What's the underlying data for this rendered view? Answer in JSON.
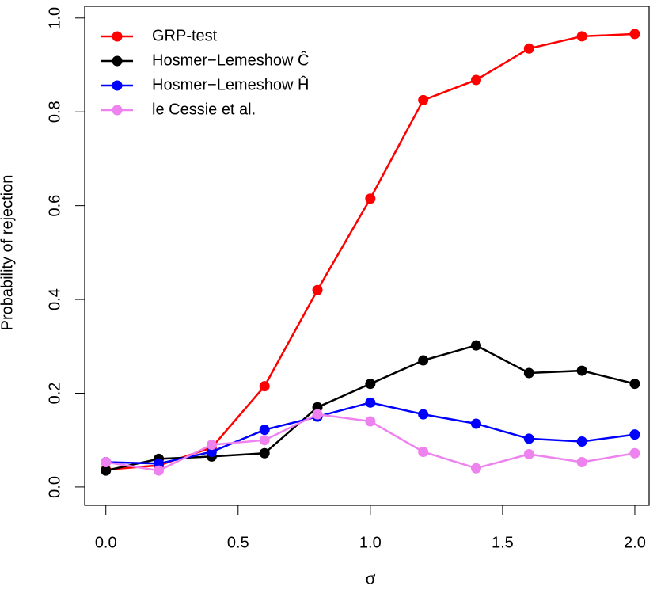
{
  "chart_data": {
    "type": "line",
    "x_label": "σ",
    "y_label": "Probability of rejection",
    "x": [
      0,
      0.2,
      0.4,
      0.6,
      0.8,
      1.0,
      1.2,
      1.4,
      1.6,
      1.8,
      2.0
    ],
    "series": [
      {
        "name": "GRP-test",
        "color": "#ff0000",
        "values": [
          0.037,
          0.046,
          0.084,
          0.215,
          0.42,
          0.615,
          0.825,
          0.868,
          0.935,
          0.961,
          0.966
        ]
      },
      {
        "name": "Hosmer−Lemeshow Ĉ",
        "color": "#000000",
        "values": [
          0.035,
          0.06,
          0.065,
          0.072,
          0.17,
          0.22,
          0.27,
          0.302,
          0.243,
          0.248,
          0.22
        ]
      },
      {
        "name": "Hosmer−Lemeshow Ĥ",
        "color": "#0000ff",
        "values": [
          0.053,
          0.05,
          0.075,
          0.122,
          0.15,
          0.18,
          0.155,
          0.135,
          0.103,
          0.097,
          0.112
        ]
      },
      {
        "name": "le Cessie et al.",
        "color": "#ee82ee",
        "values": [
          0.053,
          0.035,
          0.09,
          0.1,
          0.155,
          0.14,
          0.075,
          0.04,
          0.07,
          0.053,
          0.072
        ]
      }
    ],
    "xlim": [
      -0.08,
      2.054
    ],
    "ylim": [
      -0.039,
      1.025
    ],
    "xticks": [
      {
        "value": 0,
        "label": "0.0"
      },
      0.5,
      {
        "value": 1,
        "label": "1.0"
      },
      1.5,
      {
        "value": 2,
        "label": "2.0"
      }
    ],
    "yticks": [
      {
        "value": 0,
        "label": "0.0"
      },
      0.2,
      0.4,
      0.6,
      0.8,
      {
        "value": 1,
        "label": "1.0"
      }
    ],
    "legend": "top-left"
  }
}
